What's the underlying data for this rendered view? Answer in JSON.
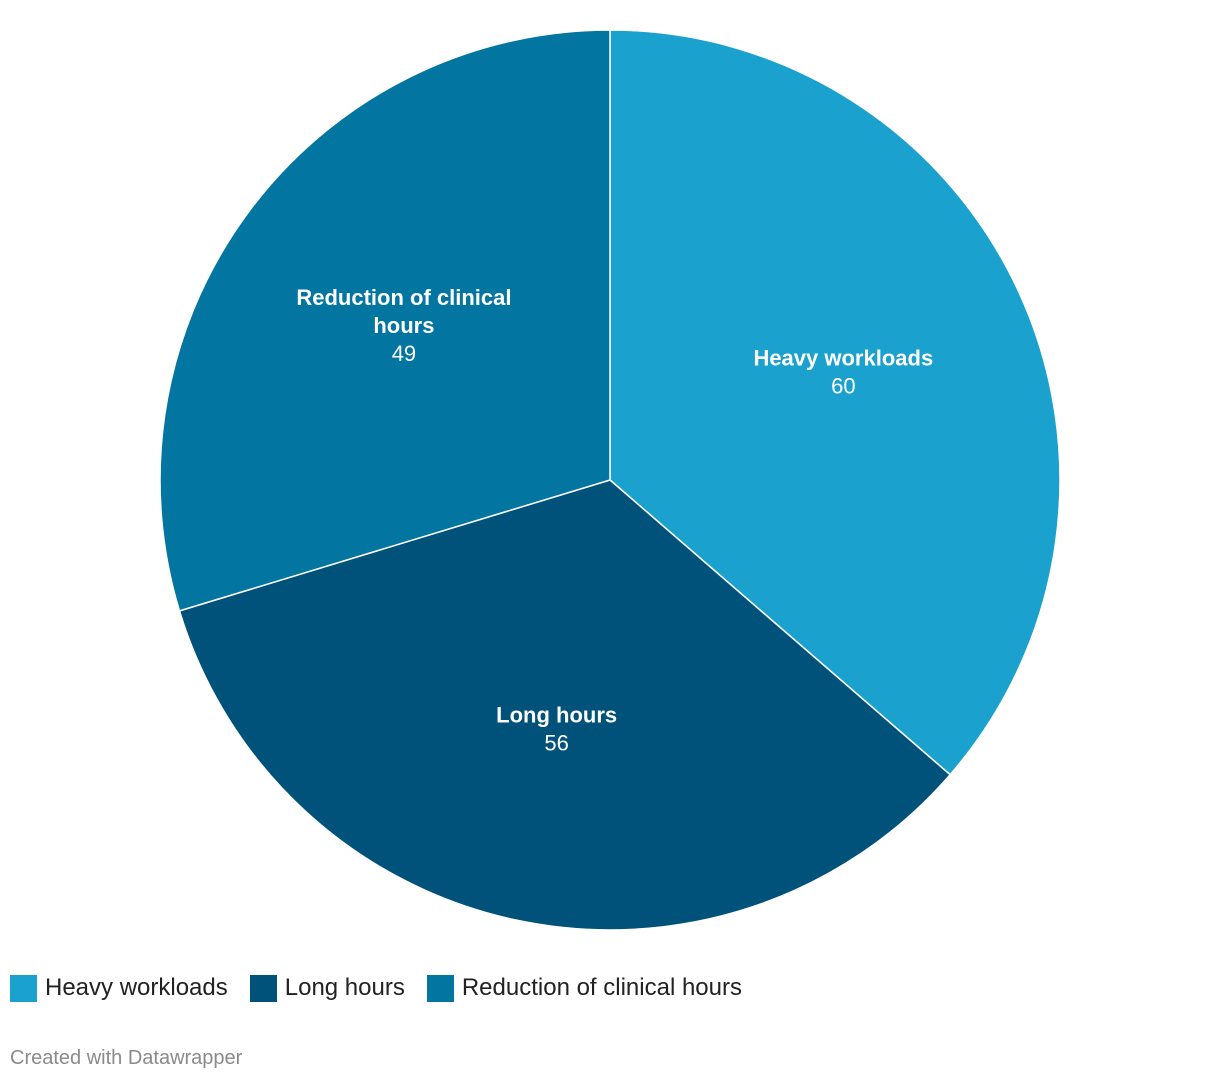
{
  "chart_data": {
    "type": "pie",
    "categories": [
      "Heavy workloads",
      "Long hours",
      "Reduction of clinical hours"
    ],
    "values": [
      60,
      56,
      49
    ],
    "colors": [
      "#1aa1ce",
      "#01527b",
      "#0375a1"
    ],
    "legend_position": "bottom-left",
    "slice_labels": [
      {
        "lines": [
          "Heavy workloads"
        ],
        "value": "60"
      },
      {
        "lines": [
          "Long hours"
        ],
        "value": "56"
      },
      {
        "lines": [
          "Reduction of clinical",
          "hours"
        ],
        "value": "49"
      }
    ]
  },
  "legend": {
    "items": [
      {
        "label": "Heavy workloads",
        "color": "#1aa1ce"
      },
      {
        "label": "Long hours",
        "color": "#01527b"
      },
      {
        "label": "Reduction of clinical hours",
        "color": "#0375a1"
      }
    ]
  },
  "footer": {
    "credit": "Created with Datawrapper"
  }
}
